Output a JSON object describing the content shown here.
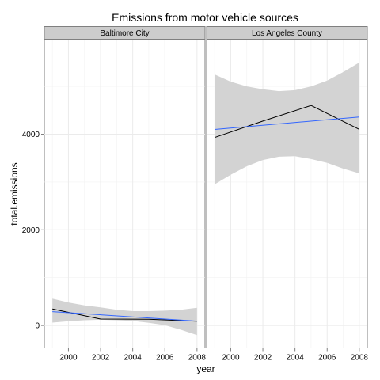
{
  "chart_data": {
    "type": "line",
    "title": "Emissions from motor vehicle sources",
    "xlabel": "year",
    "ylabel": "total.emissions",
    "xlim": [
      1998.5,
      2008.5
    ],
    "ylim": [
      -470,
      5970
    ],
    "x_ticks": [
      2000,
      2002,
      2004,
      2006,
      2008
    ],
    "y_ticks": [
      0,
      2000,
      4000
    ],
    "grid": true,
    "facet_strip_color": "#cccccc",
    "panel_background": "#ffffff",
    "grid_color": "#ebebeb",
    "band_color": "#d3d3d3",
    "observed_line_color": "#000000",
    "fit_line_color": "#3366ff",
    "facets": [
      {
        "name": "Baltimore City",
        "observed": {
          "x": [
            1999,
            2002,
            2005,
            2008
          ],
          "y": [
            347,
            134,
            130,
            89
          ]
        },
        "fit": {
          "x": [
            1999,
            2008
          ],
          "y": [
            290,
            90
          ]
        },
        "band": {
          "x": [
            1999,
            2000,
            2001,
            2002,
            2003,
            2004,
            2005,
            2006,
            2007,
            2008
          ],
          "lower": [
            60,
            90,
            110,
            120,
            110,
            95,
            55,
            5,
            -90,
            -200
          ],
          "upper": [
            560,
            480,
            420,
            380,
            330,
            300,
            300,
            310,
            330,
            370
          ]
        }
      },
      {
        "name": "Los Angeles County",
        "observed": {
          "x": [
            1999,
            2002,
            2005,
            2008
          ],
          "y": [
            3931,
            4274,
            4601,
            4101
          ]
        },
        "fit": {
          "x": [
            1999,
            2008
          ],
          "y": [
            4100,
            4360
          ]
        },
        "band": {
          "x": [
            1999,
            2000,
            2001,
            2002,
            2003,
            2004,
            2005,
            2006,
            2007,
            2008
          ],
          "lower": [
            2950,
            3150,
            3330,
            3460,
            3530,
            3540,
            3480,
            3400,
            3280,
            3180
          ],
          "upper": [
            5250,
            5100,
            5000,
            4940,
            4900,
            4920,
            5000,
            5120,
            5300,
            5500
          ]
        }
      }
    ]
  }
}
